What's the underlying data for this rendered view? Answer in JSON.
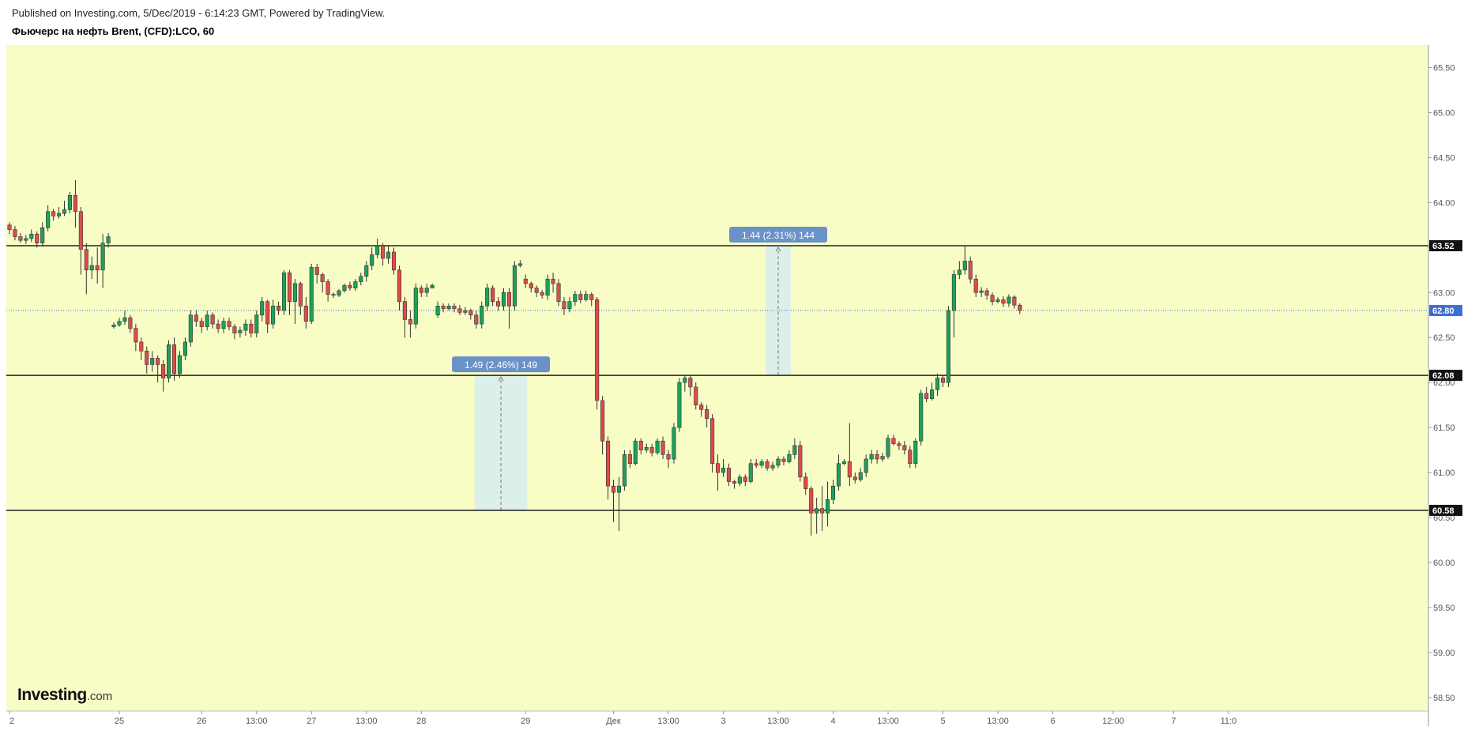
{
  "header": {
    "published": "Published on Investing.com, 5/Dec/2019 - 6:14:23 GMT, Powered by TradingView.",
    "instrument": "Фьючерс на нефть Brent, (CFD):LCO, 60"
  },
  "logo": {
    "brand": "Investing",
    "suffix": ".com"
  },
  "colors": {
    "plot_bg": "#f8fdc6",
    "up": "#1fa05a",
    "down": "#e04b4b",
    "level_line": "#222222",
    "current_line": "#3b6fd0",
    "current_tag": "#3b6fd0",
    "measure_box": "#d8ecef",
    "measure_label": "#6a92c8"
  },
  "chart_data": {
    "type": "candlestick",
    "ylim": [
      58.35,
      65.75
    ],
    "y_ticks": [
      "58.50",
      "59.00",
      "59.50",
      "60.00",
      "60.50",
      "61.00",
      "61.50",
      "62.00",
      "62.50",
      "63.00",
      "63.50",
      "64.00",
      "64.50",
      "65.00",
      "65.50"
    ],
    "x_ticks": [
      {
        "label": "2",
        "i": 0
      },
      {
        "label": "25",
        "i": 20
      },
      {
        "label": "26",
        "i": 35
      },
      {
        "label": "13:00",
        "i": 45
      },
      {
        "label": "27",
        "i": 55
      },
      {
        "label": "13:00",
        "i": 65
      },
      {
        "label": "28",
        "i": 75
      },
      {
        "label": "29",
        "i": 94
      },
      {
        "label": "Дек",
        "i": 110
      },
      {
        "label": "13:00",
        "i": 120
      },
      {
        "label": "3",
        "i": 130
      },
      {
        "label": "13:00",
        "i": 140
      },
      {
        "label": "4",
        "i": 150
      },
      {
        "label": "13:00",
        "i": 160
      },
      {
        "label": "5",
        "i": 170
      },
      {
        "label": "13:00",
        "i": 180
      },
      {
        "label": "6",
        "i": 190
      },
      {
        "label": "12:00",
        "i": 201
      },
      {
        "label": "7",
        "i": 212
      },
      {
        "label": "11:0",
        "i": 222
      }
    ],
    "levels": [
      {
        "value": 63.52,
        "label": "63.52"
      },
      {
        "value": 62.08,
        "label": "62.08"
      },
      {
        "value": 60.58,
        "label": "60.58"
      }
    ],
    "current_price": {
      "value": 62.8,
      "label": "62.80"
    },
    "measurements": [
      {
        "from_i": 85,
        "to_i": 94,
        "from": 60.58,
        "to": 62.08,
        "label": "1.49 (2.46%) 149"
      },
      {
        "from_i": 138,
        "to_i": 142,
        "from": 62.08,
        "to": 63.52,
        "label": "1.44 (2.31%) 144"
      }
    ],
    "candles": [
      [
        63.75,
        63.7,
        63.78,
        63.65
      ],
      [
        63.7,
        63.62,
        63.74,
        63.58
      ],
      [
        63.62,
        63.58,
        63.66,
        63.55
      ],
      [
        63.58,
        63.6,
        63.64,
        63.54
      ],
      [
        63.6,
        63.65,
        63.7,
        63.56
      ],
      [
        63.65,
        63.55,
        63.68,
        63.5
      ],
      [
        63.55,
        63.72,
        63.78,
        63.52
      ],
      [
        63.72,
        63.9,
        63.97,
        63.68
      ],
      [
        63.9,
        63.85,
        63.93,
        63.8
      ],
      [
        63.85,
        63.88,
        63.95,
        63.82
      ],
      [
        63.88,
        63.92,
        64.02,
        63.85
      ],
      [
        63.92,
        64.08,
        64.12,
        63.88
      ],
      [
        64.08,
        63.9,
        64.25,
        63.72
      ],
      [
        63.9,
        63.48,
        63.95,
        63.2
      ],
      [
        63.48,
        63.25,
        63.55,
        62.98
      ],
      [
        63.25,
        63.3,
        63.4,
        63.15
      ],
      [
        63.3,
        63.25,
        63.5,
        63.1
      ],
      [
        63.25,
        63.55,
        63.65,
        63.05
      ],
      [
        63.55,
        63.62,
        63.66,
        63.5
      ],
      [
        62.62,
        62.64,
        62.67,
        62.6
      ],
      [
        62.64,
        62.68,
        62.72,
        62.62
      ],
      [
        62.68,
        62.72,
        62.8,
        62.64
      ],
      [
        62.72,
        62.6,
        62.75,
        62.55
      ],
      [
        62.6,
        62.45,
        62.65,
        62.35
      ],
      [
        62.45,
        62.35,
        62.5,
        62.25
      ],
      [
        62.35,
        62.2,
        62.4,
        62.1
      ],
      [
        62.2,
        62.27,
        62.35,
        62.12
      ],
      [
        62.27,
        62.2,
        62.3,
        62.0
      ],
      [
        62.2,
        62.05,
        62.25,
        61.9
      ],
      [
        62.05,
        62.42,
        62.47,
        62.0
      ],
      [
        62.42,
        62.1,
        62.5,
        62.02
      ],
      [
        62.1,
        62.3,
        62.35,
        62.05
      ],
      [
        62.3,
        62.45,
        62.5,
        62.25
      ],
      [
        62.45,
        62.75,
        62.8,
        62.4
      ],
      [
        62.75,
        62.68,
        62.8,
        62.62
      ],
      [
        62.68,
        62.62,
        62.72,
        62.55
      ],
      [
        62.62,
        62.75,
        62.8,
        62.58
      ],
      [
        62.75,
        62.65,
        62.78,
        62.6
      ],
      [
        62.65,
        62.6,
        62.7,
        62.55
      ],
      [
        62.6,
        62.68,
        62.72,
        62.55
      ],
      [
        62.68,
        62.62,
        62.72,
        62.58
      ],
      [
        62.62,
        62.55,
        62.65,
        62.48
      ],
      [
        62.55,
        62.58,
        62.62,
        62.5
      ],
      [
        62.58,
        62.65,
        62.7,
        62.52
      ],
      [
        62.65,
        62.55,
        62.7,
        62.5
      ],
      [
        62.55,
        62.75,
        62.8,
        62.5
      ],
      [
        62.75,
        62.9,
        62.95,
        62.68
      ],
      [
        62.9,
        62.65,
        62.92,
        62.55
      ],
      [
        62.65,
        62.85,
        62.92,
        62.6
      ],
      [
        62.85,
        62.8,
        62.9,
        62.75
      ],
      [
        62.8,
        63.22,
        63.25,
        62.75
      ],
      [
        63.22,
        62.9,
        63.25,
        62.75
      ],
      [
        62.9,
        63.1,
        63.15,
        62.65
      ],
      [
        63.1,
        62.85,
        63.12,
        62.75
      ],
      [
        62.85,
        62.68,
        62.95,
        62.6
      ],
      [
        62.68,
        63.28,
        63.32,
        62.65
      ],
      [
        63.28,
        63.2,
        63.32,
        63.1
      ],
      [
        63.2,
        63.12,
        63.22,
        63.0
      ],
      [
        63.12,
        62.98,
        63.15,
        62.9
      ],
      [
        62.98,
        62.97,
        63.0,
        62.94
      ],
      [
        62.97,
        63.02,
        63.04,
        62.95
      ],
      [
        63.02,
        63.08,
        63.1,
        63.0
      ],
      [
        63.08,
        63.05,
        63.12,
        63.02
      ],
      [
        63.05,
        63.12,
        63.15,
        63.02
      ],
      [
        63.12,
        63.18,
        63.22,
        63.08
      ],
      [
        63.18,
        63.3,
        63.35,
        63.12
      ],
      [
        63.3,
        63.42,
        63.5,
        63.25
      ],
      [
        63.42,
        63.52,
        63.6,
        63.38
      ],
      [
        63.52,
        63.38,
        63.55,
        63.3
      ],
      [
        63.38,
        63.45,
        63.52,
        63.32
      ],
      [
        63.45,
        63.25,
        63.5,
        63.2
      ],
      [
        63.25,
        62.9,
        63.3,
        62.8
      ],
      [
        62.9,
        62.7,
        62.95,
        62.5
      ],
      [
        62.7,
        62.65,
        62.8,
        62.5
      ],
      [
        62.65,
        63.05,
        63.1,
        62.6
      ],
      [
        63.05,
        63.0,
        63.08,
        62.95
      ],
      [
        63.0,
        63.05,
        63.1,
        62.95
      ],
      [
        63.05,
        63.08,
        63.1,
        63.05
      ],
      [
        62.75,
        62.85,
        62.9,
        62.72
      ],
      [
        62.85,
        62.82,
        62.88,
        62.78
      ],
      [
        62.82,
        62.85,
        62.88,
        62.8
      ],
      [
        62.85,
        62.82,
        62.88,
        62.78
      ],
      [
        62.82,
        62.78,
        62.86,
        62.75
      ],
      [
        62.78,
        62.8,
        62.84,
        62.75
      ],
      [
        62.8,
        62.75,
        62.82,
        62.7
      ],
      [
        62.75,
        62.65,
        62.8,
        62.6
      ],
      [
        62.65,
        62.85,
        62.9,
        62.6
      ],
      [
        62.85,
        63.05,
        63.1,
        62.8
      ],
      [
        63.05,
        62.9,
        63.08,
        62.85
      ],
      [
        62.9,
        62.85,
        62.95,
        62.8
      ],
      [
        62.85,
        63.0,
        63.05,
        62.8
      ],
      [
        63.0,
        62.85,
        63.05,
        62.6
      ],
      [
        62.85,
        63.3,
        63.35,
        62.8
      ],
      [
        63.3,
        63.32,
        63.36,
        63.28
      ],
      [
        63.15,
        63.1,
        63.2,
        63.05
      ],
      [
        63.1,
        63.05,
        63.12,
        63.0
      ],
      [
        63.05,
        63.0,
        63.08,
        62.95
      ],
      [
        63.0,
        62.97,
        63.03,
        62.93
      ],
      [
        62.97,
        63.15,
        63.2,
        62.92
      ],
      [
        63.15,
        63.1,
        63.22,
        63.0
      ],
      [
        63.1,
        62.9,
        63.15,
        62.85
      ],
      [
        62.9,
        62.82,
        62.95,
        62.75
      ],
      [
        62.82,
        62.9,
        62.95,
        62.78
      ],
      [
        62.9,
        62.98,
        63.02,
        62.85
      ],
      [
        62.98,
        62.92,
        63.02,
        62.88
      ],
      [
        62.92,
        62.98,
        63.02,
        62.9
      ],
      [
        62.98,
        62.92,
        63.0,
        62.85
      ],
      [
        62.92,
        61.8,
        62.95,
        61.7
      ],
      [
        61.8,
        61.35,
        61.85,
        61.2
      ],
      [
        61.35,
        60.85,
        61.4,
        60.7
      ],
      [
        60.85,
        60.78,
        60.92,
        60.45
      ],
      [
        60.78,
        60.85,
        60.95,
        60.35
      ],
      [
        60.85,
        61.2,
        61.25,
        60.8
      ],
      [
        61.2,
        61.1,
        61.25,
        61.05
      ],
      [
        61.1,
        61.35,
        61.38,
        61.08
      ],
      [
        61.35,
        61.25,
        61.38,
        61.2
      ],
      [
        61.25,
        61.28,
        61.32,
        61.22
      ],
      [
        61.28,
        61.22,
        61.32,
        61.18
      ],
      [
        61.22,
        61.35,
        61.38,
        61.2
      ],
      [
        61.35,
        61.2,
        61.4,
        61.15
      ],
      [
        61.2,
        61.15,
        61.25,
        61.05
      ],
      [
        61.15,
        61.5,
        61.55,
        61.1
      ],
      [
        61.5,
        62.0,
        62.05,
        61.45
      ],
      [
        62.0,
        62.05,
        62.08,
        61.9
      ],
      [
        62.05,
        61.95,
        62.08,
        61.85
      ],
      [
        61.95,
        61.75,
        62.0,
        61.7
      ],
      [
        61.75,
        61.7,
        61.78,
        61.62
      ],
      [
        61.7,
        61.6,
        61.75,
        61.5
      ],
      [
        61.6,
        61.1,
        61.65,
        61.0
      ],
      [
        61.1,
        61.0,
        61.2,
        60.8
      ],
      [
        61.0,
        61.05,
        61.15,
        60.95
      ],
      [
        61.05,
        60.9,
        61.1,
        60.85
      ],
      [
        60.9,
        60.88,
        60.92,
        60.82
      ],
      [
        60.88,
        60.95,
        60.98,
        60.85
      ],
      [
        60.95,
        60.9,
        60.98,
        60.85
      ],
      [
        60.9,
        61.1,
        61.15,
        60.88
      ],
      [
        61.1,
        61.08,
        61.15,
        61.05
      ],
      [
        61.08,
        61.12,
        61.15,
        61.05
      ],
      [
        61.12,
        61.05,
        61.15,
        61.02
      ],
      [
        61.05,
        61.08,
        61.12,
        61.02
      ],
      [
        61.08,
        61.15,
        61.18,
        61.05
      ],
      [
        61.15,
        61.12,
        61.18,
        61.08
      ],
      [
        61.12,
        61.2,
        61.25,
        61.1
      ],
      [
        61.2,
        61.3,
        61.38,
        61.15
      ],
      [
        61.3,
        60.95,
        61.35,
        60.9
      ],
      [
        60.95,
        60.82,
        61.0,
        60.75
      ],
      [
        60.82,
        60.55,
        60.85,
        60.3
      ],
      [
        60.55,
        60.6,
        60.72,
        60.32
      ],
      [
        60.6,
        60.55,
        60.85,
        60.35
      ],
      [
        60.55,
        60.7,
        60.9,
        60.4
      ],
      [
        60.7,
        60.85,
        60.92,
        60.65
      ],
      [
        60.85,
        61.1,
        61.2,
        60.8
      ],
      [
        61.1,
        61.12,
        61.15,
        61.08
      ],
      [
        61.12,
        60.95,
        61.55,
        60.85
      ],
      [
        60.95,
        60.92,
        61.0,
        60.88
      ],
      [
        60.92,
        61.0,
        61.05,
        60.9
      ],
      [
        61.0,
        61.15,
        61.2,
        60.95
      ],
      [
        61.15,
        61.2,
        61.25,
        61.1
      ],
      [
        61.2,
        61.15,
        61.25,
        61.1
      ],
      [
        61.15,
        61.18,
        61.22,
        61.12
      ],
      [
        61.18,
        61.38,
        61.42,
        61.15
      ],
      [
        61.38,
        61.32,
        61.42,
        61.3
      ],
      [
        61.32,
        61.3,
        61.35,
        61.25
      ],
      [
        61.3,
        61.25,
        61.35,
        61.2
      ],
      [
        61.25,
        61.1,
        61.3,
        61.05
      ],
      [
        61.1,
        61.35,
        61.38,
        61.05
      ],
      [
        61.35,
        61.88,
        61.92,
        61.3
      ],
      [
        61.88,
        61.82,
        61.95,
        61.78
      ],
      [
        61.82,
        61.92,
        62.0,
        61.8
      ],
      [
        61.92,
        62.05,
        62.1,
        61.85
      ],
      [
        62.05,
        62.0,
        62.08,
        61.95
      ],
      [
        62.0,
        62.8,
        62.85,
        61.95
      ],
      [
        62.8,
        63.2,
        63.25,
        62.5
      ],
      [
        63.2,
        63.25,
        63.35,
        63.15
      ],
      [
        63.25,
        63.35,
        63.52,
        63.2
      ],
      [
        63.35,
        63.15,
        63.4,
        63.1
      ],
      [
        63.15,
        63.0,
        63.2,
        62.95
      ],
      [
        63.0,
        63.02,
        63.06,
        62.95
      ],
      [
        63.02,
        62.97,
        63.05,
        62.92
      ],
      [
        62.97,
        62.9,
        63.0,
        62.86
      ],
      [
        62.9,
        62.92,
        62.95,
        62.88
      ],
      [
        62.92,
        62.88,
        62.96,
        62.84
      ],
      [
        62.88,
        62.95,
        62.98,
        62.84
      ],
      [
        62.95,
        62.86,
        62.97,
        62.82
      ],
      [
        62.86,
        62.8,
        62.88,
        62.76
      ]
    ]
  }
}
